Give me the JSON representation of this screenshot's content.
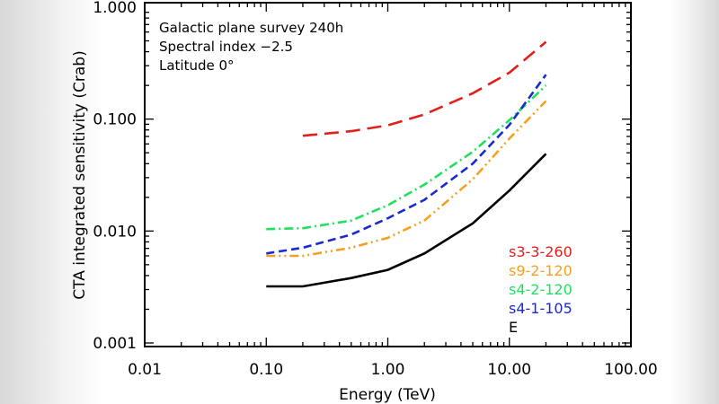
{
  "chart_data": {
    "type": "line",
    "xlabel": "Energy (TeV)",
    "ylabel": "CTA integrated sensitivity (Crab)",
    "xscale": "log",
    "yscale": "log",
    "xlim": [
      0.01,
      100
    ],
    "ylim": [
      0.001,
      1
    ],
    "x_tick_labels": [
      "0.01",
      "0.10",
      "1.00",
      "10.00",
      "100.00"
    ],
    "y_tick_labels": [
      "0.001",
      "0.010",
      "0.100",
      "1.000"
    ],
    "annotations": [
      "Galactic plane survey 240h",
      "Spectral index −2.5",
      "Latitude 0°"
    ],
    "legend_placement": "bottom-right",
    "x": [
      0.1,
      0.2,
      0.5,
      1,
      2,
      5,
      10,
      20
    ],
    "series": [
      {
        "name": "s3-3-260",
        "color": "#e0201c",
        "dash": "long-dash",
        "values": [
          null,
          0.071,
          0.078,
          0.088,
          0.11,
          0.17,
          0.26,
          0.49
        ]
      },
      {
        "name": "s9-2-120",
        "color": "#f5a020",
        "dash": "dash-dot-dot",
        "values": [
          0.006,
          0.006,
          0.0071,
          0.0087,
          0.0124,
          0.029,
          0.067,
          0.145
        ]
      },
      {
        "name": "s4-2-120",
        "color": "#20e060",
        "dash": "dash-dot",
        "values": [
          0.0104,
          0.0106,
          0.0124,
          0.017,
          0.026,
          0.051,
          0.098,
          0.2
        ]
      },
      {
        "name": "s4-1-105",
        "color": "#1a2ad0",
        "dash": "dash",
        "values": [
          0.0063,
          0.0071,
          0.0093,
          0.013,
          0.019,
          0.04,
          0.089,
          0.25
        ]
      },
      {
        "name": "E",
        "color": "#000000",
        "dash": "solid",
        "values": [
          0.0032,
          0.0032,
          0.0038,
          0.0045,
          0.0063,
          0.0117,
          0.023,
          0.049
        ]
      }
    ]
  }
}
